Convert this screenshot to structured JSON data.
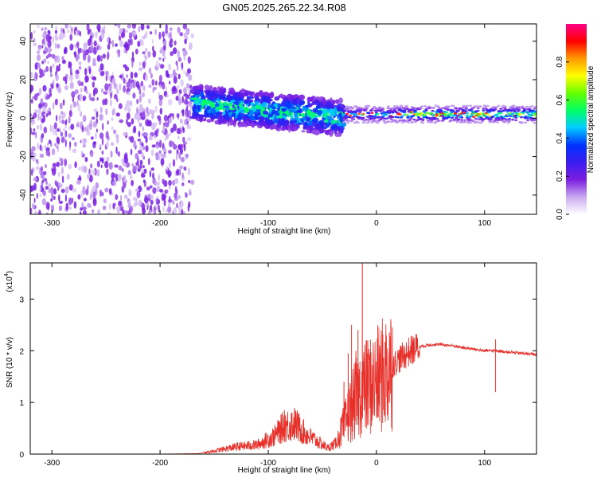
{
  "title": "GN05.2025.265.22.34.R08",
  "chart_data": [
    {
      "type": "heatmap",
      "xlabel": "Height of straight line (km)",
      "ylabel": "Frequency (Hz)",
      "xlim": [
        -320,
        148
      ],
      "ylim": [
        -50,
        49
      ],
      "xticks": [
        -300,
        -200,
        -100,
        0,
        100
      ],
      "yticks": [
        -40,
        -20,
        0,
        20,
        40
      ],
      "colorbar": {
        "label": "Normalized spectral amplitude",
        "range": [
          0,
          1
        ],
        "ticks": [
          0.0,
          0.2,
          0.4,
          0.6,
          0.8
        ],
        "colormap": [
          "#ffffff",
          "#c9a9f2",
          "#7b1fe0",
          "#3a1cf0",
          "#0033ff",
          "#00ccff",
          "#00ff66",
          "#66ff00",
          "#ffff00",
          "#ff9900",
          "#ff0000",
          "#ff0088"
        ]
      },
      "regions": [
        {
          "x_range": [
            -320,
            -170
          ],
          "f_range": [
            -50,
            49
          ],
          "amplitude": 0.12,
          "description": "noise"
        },
        {
          "x_range": [
            -170,
            -30
          ],
          "center_start": 8,
          "center_end": 0,
          "half_width": 9,
          "peak_amplitude": 0.45
        },
        {
          "x_range": [
            -30,
            148
          ],
          "center": 2,
          "half_width": 2.5,
          "peak_amplitude": 1.0
        }
      ]
    },
    {
      "type": "line",
      "xlabel": "Height of straight line (km)",
      "ylabel": "SNR (10 * v/v)",
      "y_scale_label": "(x10",
      "y_scale_exponent": "4",
      "xlim": [
        -320,
        148
      ],
      "ylim": [
        0,
        3.7
      ],
      "xticks": [
        -300,
        -200,
        -100,
        0,
        100
      ],
      "yticks": [
        0,
        1,
        2,
        3
      ],
      "series": [
        {
          "color": "#e8302a",
          "x": [
            -320,
            -250,
            -200,
            -165,
            -150,
            -130,
            -110,
            -95,
            -85,
            -75,
            -65,
            -55,
            -45,
            -38,
            -30,
            -22,
            -15,
            -8,
            0,
            10,
            20,
            30,
            40,
            50,
            60,
            70,
            80,
            90,
            100,
            110,
            120,
            130,
            140,
            148
          ],
          "y": [
            0.0,
            0.0,
            0.0,
            0.01,
            0.06,
            0.14,
            0.18,
            0.34,
            0.55,
            0.58,
            0.38,
            0.25,
            0.12,
            0.2,
            0.55,
            0.95,
            1.2,
            1.3,
            1.4,
            1.62,
            1.82,
            1.98,
            2.08,
            2.12,
            2.12,
            2.1,
            2.06,
            2.03,
            2.0,
            2.0,
            1.98,
            1.96,
            1.94,
            1.93
          ]
        }
      ],
      "spikes": [
        {
          "x": -13,
          "y": 3.7
        },
        {
          "x": -23,
          "y": 2.5
        },
        {
          "x": -17,
          "y": 2.4
        },
        {
          "x": -9,
          "y": 2.2
        },
        {
          "x": 12,
          "y": 2.35
        },
        {
          "x": -26,
          "y": 1.95
        },
        {
          "x": -19,
          "y": 2.0
        },
        {
          "x": -30,
          "y": 1.4
        },
        {
          "x": 3,
          "y": 2.1
        },
        {
          "x": -85,
          "y": 0.85
        },
        {
          "x": -78,
          "y": 0.8
        },
        {
          "x": 110,
          "y": 2.22
        }
      ]
    }
  ]
}
